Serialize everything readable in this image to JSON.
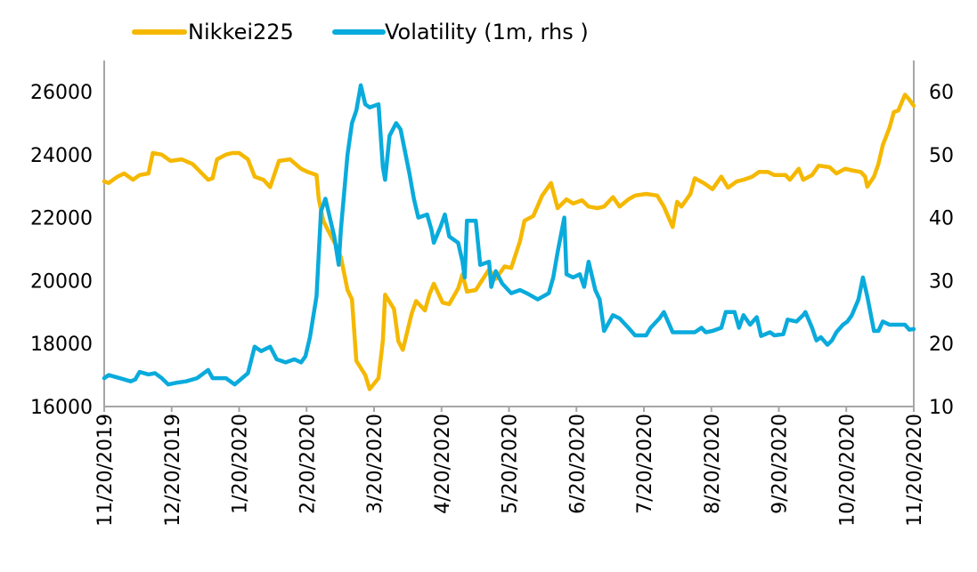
{
  "colors": {
    "nikkei": "#f5b800",
    "volatility": "#0aabdc",
    "axis": "#a6a6a6"
  },
  "chart_data": {
    "type": "line",
    "title": "",
    "xlabel": "",
    "ylabel": "",
    "y2label": "",
    "legend_position": "top",
    "grid": false,
    "x_range": [
      "2019-11-20",
      "2020-11-20"
    ],
    "x_tick_labels": [
      "11/20/2019",
      "12/20/2019",
      "1/20/2020",
      "2/20/2020",
      "3/20/2020",
      "4/20/2020",
      "5/20/2020",
      "6/20/2020",
      "7/20/2020",
      "8/20/2020",
      "9/20/2020",
      "10/20/2020",
      "11/20/2020"
    ],
    "ylim": [
      16000,
      26000
    ],
    "y_ticks": [
      "16000",
      "18000",
      "20000",
      "22000",
      "24000",
      "26000"
    ],
    "y2lim": [
      10,
      60
    ],
    "y2_ticks": [
      "10",
      "20",
      "30",
      "40",
      "50",
      "60"
    ],
    "series": [
      {
        "name": "Nikkei225",
        "axis": "left",
        "color": "#f5b800",
        "points": [
          [
            "2019-11-20",
            23150
          ],
          [
            "2019-11-22",
            23100
          ],
          [
            "2019-11-26",
            23300
          ],
          [
            "2019-11-29",
            23400
          ],
          [
            "2019-12-03",
            23200
          ],
          [
            "2019-12-06",
            23350
          ],
          [
            "2019-12-10",
            23400
          ],
          [
            "2019-12-12",
            24050
          ],
          [
            "2019-12-16",
            24000
          ],
          [
            "2019-12-20",
            23800
          ],
          [
            "2019-12-25",
            23850
          ],
          [
            "2019-12-30",
            23700
          ],
          [
            "2020-01-06",
            23200
          ],
          [
            "2020-01-08",
            23250
          ],
          [
            "2020-01-10",
            23850
          ],
          [
            "2020-01-14",
            24000
          ],
          [
            "2020-01-17",
            24050
          ],
          [
            "2020-01-20",
            24050
          ],
          [
            "2020-01-24",
            23850
          ],
          [
            "2020-01-27",
            23300
          ],
          [
            "2020-01-31",
            23200
          ],
          [
            "2020-02-03",
            22970
          ],
          [
            "2020-02-07",
            23800
          ],
          [
            "2020-02-12",
            23850
          ],
          [
            "2020-02-17",
            23550
          ],
          [
            "2020-02-20",
            23450
          ],
          [
            "2020-02-24",
            23350
          ],
          [
            "2020-02-25",
            22600
          ],
          [
            "2020-02-27",
            21900
          ],
          [
            "2020-03-02",
            21350
          ],
          [
            "2020-03-04",
            21100
          ],
          [
            "2020-03-06",
            20750
          ],
          [
            "2020-03-09",
            19700
          ],
          [
            "2020-03-11",
            19400
          ],
          [
            "2020-03-13",
            17450
          ],
          [
            "2020-03-17",
            17000
          ],
          [
            "2020-03-19",
            16550
          ],
          [
            "2020-03-23",
            16900
          ],
          [
            "2020-03-25",
            18100
          ],
          [
            "2020-03-26",
            19550
          ],
          [
            "2020-03-30",
            19100
          ],
          [
            "2020-04-01",
            18070
          ],
          [
            "2020-04-03",
            17800
          ],
          [
            "2020-04-07",
            18950
          ],
          [
            "2020-04-09",
            19350
          ],
          [
            "2020-04-13",
            19050
          ],
          [
            "2020-04-15",
            19550
          ],
          [
            "2020-04-17",
            19900
          ],
          [
            "2020-04-21",
            19300
          ],
          [
            "2020-04-24",
            19250
          ],
          [
            "2020-04-28",
            19750
          ],
          [
            "2020-04-30",
            20200
          ],
          [
            "2020-05-02",
            19650
          ],
          [
            "2020-05-06",
            19700
          ],
          [
            "2020-05-12",
            20350
          ],
          [
            "2020-05-15",
            20050
          ],
          [
            "2020-05-19",
            20450
          ],
          [
            "2020-05-22",
            20400
          ],
          [
            "2020-05-26",
            21250
          ],
          [
            "2020-05-28",
            21900
          ],
          [
            "2020-06-01",
            22050
          ],
          [
            "2020-06-05",
            22700
          ],
          [
            "2020-06-09",
            23100
          ],
          [
            "2020-06-12",
            22300
          ],
          [
            "2020-06-16",
            22580
          ],
          [
            "2020-06-19",
            22450
          ],
          [
            "2020-06-23",
            22550
          ],
          [
            "2020-06-26",
            22350
          ],
          [
            "2020-06-30",
            22300
          ],
          [
            "2020-07-03",
            22350
          ],
          [
            "2020-07-07",
            22650
          ],
          [
            "2020-07-10",
            22350
          ],
          [
            "2020-07-14",
            22580
          ],
          [
            "2020-07-17",
            22700
          ],
          [
            "2020-07-22",
            22750
          ],
          [
            "2020-07-27",
            22700
          ],
          [
            "2020-07-30",
            22350
          ],
          [
            "2020-08-03",
            21700
          ],
          [
            "2020-08-05",
            22500
          ],
          [
            "2020-08-07",
            22350
          ],
          [
            "2020-08-11",
            22750
          ],
          [
            "2020-08-13",
            23250
          ],
          [
            "2020-08-17",
            23100
          ],
          [
            "2020-08-21",
            22900
          ],
          [
            "2020-08-25",
            23300
          ],
          [
            "2020-08-28",
            22950
          ],
          [
            "2020-09-01",
            23150
          ],
          [
            "2020-09-04",
            23200
          ],
          [
            "2020-09-08",
            23300
          ],
          [
            "2020-09-11",
            23450
          ],
          [
            "2020-09-15",
            23450
          ],
          [
            "2020-09-18",
            23350
          ],
          [
            "2020-09-23",
            23350
          ],
          [
            "2020-09-25",
            23200
          ],
          [
            "2020-09-29",
            23550
          ],
          [
            "2020-10-01",
            23200
          ],
          [
            "2020-10-05",
            23350
          ],
          [
            "2020-10-08",
            23650
          ],
          [
            "2020-10-13",
            23600
          ],
          [
            "2020-10-16",
            23400
          ],
          [
            "2020-10-20",
            23550
          ],
          [
            "2020-10-23",
            23500
          ],
          [
            "2020-10-27",
            23450
          ],
          [
            "2020-10-29",
            23300
          ],
          [
            "2020-10-30",
            22980
          ],
          [
            "2020-11-02",
            23300
          ],
          [
            "2020-11-04",
            23700
          ],
          [
            "2020-11-06",
            24300
          ],
          [
            "2020-11-09",
            24850
          ],
          [
            "2020-11-11",
            25350
          ],
          [
            "2020-11-13",
            25400
          ],
          [
            "2020-11-16",
            25900
          ],
          [
            "2020-11-18",
            25750
          ],
          [
            "2020-11-20",
            25550
          ]
        ]
      },
      {
        "name": "Volatility (1m, rhs )",
        "axis": "right",
        "color": "#0aabdc",
        "points": [
          [
            "2019-11-20",
            14.5
          ],
          [
            "2019-11-22",
            15
          ],
          [
            "2019-11-27",
            14.5
          ],
          [
            "2019-12-02",
            14
          ],
          [
            "2019-12-04",
            14.3
          ],
          [
            "2019-12-06",
            15.5
          ],
          [
            "2019-12-10",
            15.1
          ],
          [
            "2019-12-13",
            15.3
          ],
          [
            "2019-12-16",
            14.5
          ],
          [
            "2019-12-19",
            13.5
          ],
          [
            "2019-12-23",
            13.8
          ],
          [
            "2019-12-27",
            14
          ],
          [
            "2020-01-01",
            14.5
          ],
          [
            "2020-01-06",
            15.8
          ],
          [
            "2020-01-08",
            14.5
          ],
          [
            "2020-01-14",
            14.5
          ],
          [
            "2020-01-18",
            13.5
          ],
          [
            "2020-01-21",
            14.4
          ],
          [
            "2020-01-24",
            15.3
          ],
          [
            "2020-01-27",
            19.5
          ],
          [
            "2020-01-30",
            18.8
          ],
          [
            "2020-02-03",
            19.5
          ],
          [
            "2020-02-06",
            17.5
          ],
          [
            "2020-02-10",
            17
          ],
          [
            "2020-02-14",
            17.5
          ],
          [
            "2020-02-17",
            17
          ],
          [
            "2020-02-19",
            18
          ],
          [
            "2020-02-21",
            21
          ],
          [
            "2020-02-24",
            27.5
          ],
          [
            "2020-02-26",
            41
          ],
          [
            "2020-02-28",
            43
          ],
          [
            "2020-03-03",
            37
          ],
          [
            "2020-03-05",
            32.5
          ],
          [
            "2020-03-06",
            38
          ],
          [
            "2020-03-09",
            50
          ],
          [
            "2020-03-11",
            55
          ],
          [
            "2020-03-13",
            57
          ],
          [
            "2020-03-15",
            61
          ],
          [
            "2020-03-17",
            58
          ],
          [
            "2020-03-19",
            57.5
          ],
          [
            "2020-03-23",
            58
          ],
          [
            "2020-03-25",
            48
          ],
          [
            "2020-03-26",
            46
          ],
          [
            "2020-03-28",
            53
          ],
          [
            "2020-03-31",
            55
          ],
          [
            "2020-04-02",
            54
          ],
          [
            "2020-04-06",
            47
          ],
          [
            "2020-04-08",
            43
          ],
          [
            "2020-04-10",
            40
          ],
          [
            "2020-04-14",
            40.5
          ],
          [
            "2020-04-16",
            38
          ],
          [
            "2020-04-17",
            36
          ],
          [
            "2020-04-20",
            38.5
          ],
          [
            "2020-04-22",
            40.5
          ],
          [
            "2020-04-24",
            37
          ],
          [
            "2020-04-28",
            36
          ],
          [
            "2020-04-30",
            33
          ],
          [
            "2020-05-01",
            30.5
          ],
          [
            "2020-05-02",
            39.5
          ],
          [
            "2020-05-06",
            39.5
          ],
          [
            "2020-05-08",
            32.5
          ],
          [
            "2020-05-12",
            33
          ],
          [
            "2020-05-13",
            29
          ],
          [
            "2020-05-15",
            31.5
          ],
          [
            "2020-05-18",
            29.5
          ],
          [
            "2020-05-22",
            28
          ],
          [
            "2020-05-26",
            28.5
          ],
          [
            "2020-05-29",
            28
          ],
          [
            "2020-06-03",
            27
          ],
          [
            "2020-06-08",
            28
          ],
          [
            "2020-06-10",
            30.5
          ],
          [
            "2020-06-12",
            34.5
          ],
          [
            "2020-06-15",
            40
          ],
          [
            "2020-06-16",
            31
          ],
          [
            "2020-06-19",
            30.5
          ],
          [
            "2020-06-22",
            31
          ],
          [
            "2020-06-24",
            29
          ],
          [
            "2020-06-26",
            33
          ],
          [
            "2020-06-29",
            28.5
          ],
          [
            "2020-07-01",
            27
          ],
          [
            "2020-07-03",
            22
          ],
          [
            "2020-07-07",
            24.5
          ],
          [
            "2020-07-10",
            24
          ],
          [
            "2020-07-14",
            22.5
          ],
          [
            "2020-07-16",
            21.7
          ],
          [
            "2020-07-17",
            21.3
          ],
          [
            "2020-07-22",
            21.3
          ],
          [
            "2020-07-24",
            22.5
          ],
          [
            "2020-07-28",
            24
          ],
          [
            "2020-07-30",
            25
          ],
          [
            "2020-08-03",
            21.8
          ],
          [
            "2020-08-08",
            21.8
          ],
          [
            "2020-08-13",
            21.8
          ],
          [
            "2020-08-16",
            22.5
          ],
          [
            "2020-08-18",
            21.8
          ],
          [
            "2020-08-21",
            22
          ],
          [
            "2020-08-25",
            22.5
          ],
          [
            "2020-08-27",
            25
          ],
          [
            "2020-08-31",
            25
          ],
          [
            "2020-09-02",
            22.5
          ],
          [
            "2020-09-04",
            24.5
          ],
          [
            "2020-09-07",
            23
          ],
          [
            "2020-09-10",
            24.2
          ],
          [
            "2020-09-12",
            21.2
          ],
          [
            "2020-09-16",
            21.8
          ],
          [
            "2020-09-18",
            21.3
          ],
          [
            "2020-09-22",
            21.5
          ],
          [
            "2020-09-24",
            23.8
          ],
          [
            "2020-09-28",
            23.5
          ],
          [
            "2020-10-01",
            24.5
          ],
          [
            "2020-10-02",
            25
          ],
          [
            "2020-10-05",
            22.5
          ],
          [
            "2020-10-07",
            20.5
          ],
          [
            "2020-10-09",
            21
          ],
          [
            "2020-10-12",
            19.8
          ],
          [
            "2020-10-14",
            20.5
          ],
          [
            "2020-10-16",
            21.8
          ],
          [
            "2020-10-19",
            23
          ],
          [
            "2020-10-21",
            23.5
          ],
          [
            "2020-10-23",
            24.5
          ],
          [
            "2020-10-26",
            27
          ],
          [
            "2020-10-28",
            30.5
          ],
          [
            "2020-10-30",
            27.5
          ],
          [
            "2020-11-02",
            22
          ],
          [
            "2020-11-04",
            22
          ],
          [
            "2020-11-06",
            23.5
          ],
          [
            "2020-11-09",
            23
          ],
          [
            "2020-11-12",
            23
          ],
          [
            "2020-11-16",
            23
          ],
          [
            "2020-11-18",
            22.2
          ],
          [
            "2020-11-20",
            22.3
          ]
        ]
      }
    ]
  }
}
